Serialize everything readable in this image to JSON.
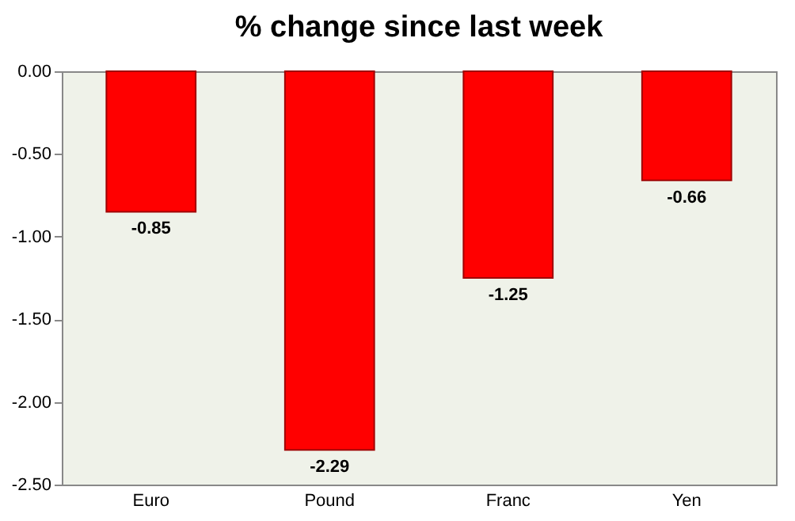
{
  "chart_data": {
    "type": "bar",
    "title": "% change since last week",
    "categories": [
      "Euro",
      "Pound",
      "Franc",
      "Yen"
    ],
    "values": [
      -0.85,
      -2.29,
      -1.25,
      -0.66
    ],
    "color": "#ff0000",
    "ylim": [
      -2.5,
      0
    ],
    "yticks": [
      {
        "value": 0,
        "label": "0.00"
      },
      {
        "value": -0.5,
        "label": "-0.50"
      },
      {
        "value": -1,
        "label": "-1.00"
      },
      {
        "value": -1.5,
        "label": "-1.50"
      },
      {
        "value": -2,
        "label": "-2.00"
      },
      {
        "value": -2.5,
        "label": "-2.50"
      }
    ],
    "data_labels": true,
    "grid": false
  }
}
